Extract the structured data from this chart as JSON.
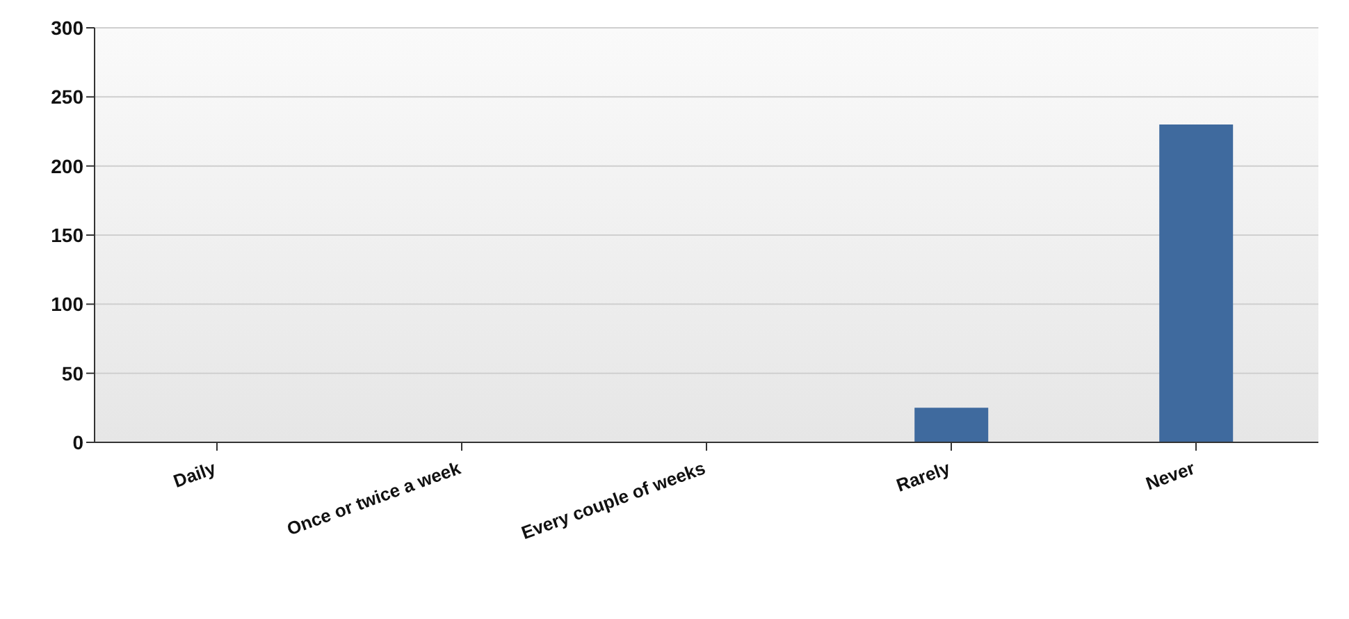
{
  "chart_data": {
    "type": "bar",
    "categories": [
      "Daily",
      "Once or twice a week",
      "Every couple of weeks",
      "Rarely",
      "Never"
    ],
    "values": [
      0,
      0,
      0,
      25,
      230
    ],
    "color": "#3f6a9e",
    "ylim": [
      0,
      300
    ],
    "yticks": [
      0,
      50,
      100,
      150,
      200,
      250,
      300
    ],
    "grid": "y"
  }
}
